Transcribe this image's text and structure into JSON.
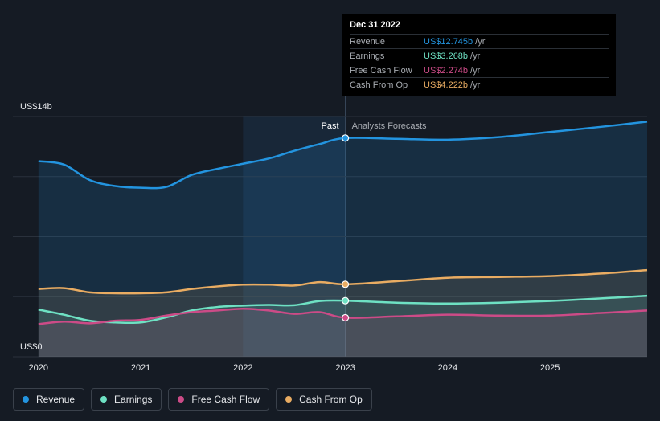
{
  "colors": {
    "revenue": "#2394df",
    "earnings": "#6ee1c3",
    "free_cash_flow": "#cc4b87",
    "cash_from_op": "#e9ac62",
    "grid": "#2a313c",
    "axis_text": "#e6e8eb",
    "past_highlight": "#1b3148"
  },
  "tooltip": {
    "date": "Dec 31 2022",
    "rows": [
      {
        "label": "Revenue",
        "value": "US$12.745b",
        "unit": "/yr",
        "color": "#2394df"
      },
      {
        "label": "Earnings",
        "value": "US$3.268b",
        "unit": "/yr",
        "color": "#6ee1c3"
      },
      {
        "label": "Free Cash Flow",
        "value": "US$2.274b",
        "unit": "/yr",
        "color": "#cc4b87"
      },
      {
        "label": "Cash From Op",
        "value": "US$4.222b",
        "unit": "/yr",
        "color": "#e9ac62"
      }
    ]
  },
  "legend": [
    {
      "label": "Revenue",
      "color": "#2394df"
    },
    {
      "label": "Earnings",
      "color": "#6ee1c3"
    },
    {
      "label": "Free Cash Flow",
      "color": "#cc4b87"
    },
    {
      "label": "Cash From Op",
      "color": "#e9ac62"
    }
  ],
  "chart_data": {
    "type": "area",
    "title": "",
    "y_top_label": "US$14b",
    "y_bottom_label": "US$0",
    "ylim": [
      0,
      14
    ],
    "xlim": [
      2019.75,
      2025.95
    ],
    "past_label": "Past",
    "forecast_label": "Analysts Forecasts",
    "divider_x": 2023.0,
    "highlight_start_x": 2022.0,
    "x_ticks": [
      {
        "value": 2020,
        "label": "2020"
      },
      {
        "value": 2021,
        "label": "2021"
      },
      {
        "value": 2022,
        "label": "2022"
      },
      {
        "value": 2023,
        "label": "2023"
      },
      {
        "value": 2024,
        "label": "2024"
      },
      {
        "value": 2025,
        "label": "2025"
      }
    ],
    "series": [
      {
        "key": "revenue",
        "name": "Revenue",
        "points": [
          [
            2020.0,
            11.4
          ],
          [
            2020.25,
            11.2
          ],
          [
            2020.5,
            10.3
          ],
          [
            2020.75,
            9.95
          ],
          [
            2021.0,
            9.85
          ],
          [
            2021.25,
            9.9
          ],
          [
            2021.5,
            10.6
          ],
          [
            2021.75,
            10.95
          ],
          [
            2022.0,
            11.25
          ],
          [
            2022.25,
            11.55
          ],
          [
            2022.5,
            12.0
          ],
          [
            2022.75,
            12.4
          ],
          [
            2023.0,
            12.745
          ],
          [
            2023.5,
            12.7
          ],
          [
            2024.0,
            12.65
          ],
          [
            2024.5,
            12.8
          ],
          [
            2025.0,
            13.1
          ],
          [
            2025.5,
            13.4
          ],
          [
            2025.95,
            13.7
          ]
        ]
      },
      {
        "key": "cash_from_op",
        "name": "Cash From Op",
        "points": [
          [
            2020.0,
            3.95
          ],
          [
            2020.25,
            4.0
          ],
          [
            2020.5,
            3.75
          ],
          [
            2020.75,
            3.7
          ],
          [
            2021.0,
            3.7
          ],
          [
            2021.25,
            3.75
          ],
          [
            2021.5,
            3.95
          ],
          [
            2021.75,
            4.1
          ],
          [
            2022.0,
            4.2
          ],
          [
            2022.25,
            4.2
          ],
          [
            2022.5,
            4.15
          ],
          [
            2022.75,
            4.35
          ],
          [
            2023.0,
            4.222
          ],
          [
            2023.5,
            4.4
          ],
          [
            2024.0,
            4.6
          ],
          [
            2024.5,
            4.65
          ],
          [
            2025.0,
            4.7
          ],
          [
            2025.5,
            4.85
          ],
          [
            2025.95,
            5.05
          ]
        ]
      },
      {
        "key": "earnings",
        "name": "Earnings",
        "points": [
          [
            2020.0,
            2.75
          ],
          [
            2020.25,
            2.45
          ],
          [
            2020.5,
            2.1
          ],
          [
            2020.75,
            2.0
          ],
          [
            2021.0,
            2.0
          ],
          [
            2021.25,
            2.3
          ],
          [
            2021.5,
            2.7
          ],
          [
            2021.75,
            2.9
          ],
          [
            2022.0,
            2.98
          ],
          [
            2022.25,
            3.02
          ],
          [
            2022.5,
            3.0
          ],
          [
            2022.75,
            3.25
          ],
          [
            2023.0,
            3.268
          ],
          [
            2023.5,
            3.15
          ],
          [
            2024.0,
            3.1
          ],
          [
            2024.5,
            3.15
          ],
          [
            2025.0,
            3.25
          ],
          [
            2025.5,
            3.4
          ],
          [
            2025.95,
            3.55
          ]
        ]
      },
      {
        "key": "free_cash_flow",
        "name": "Free Cash Flow",
        "points": [
          [
            2020.0,
            1.9
          ],
          [
            2020.25,
            2.05
          ],
          [
            2020.5,
            1.95
          ],
          [
            2020.75,
            2.1
          ],
          [
            2021.0,
            2.15
          ],
          [
            2021.25,
            2.4
          ],
          [
            2021.5,
            2.6
          ],
          [
            2021.75,
            2.7
          ],
          [
            2022.0,
            2.8
          ],
          [
            2022.25,
            2.7
          ],
          [
            2022.5,
            2.5
          ],
          [
            2022.75,
            2.6
          ],
          [
            2023.0,
            2.274
          ],
          [
            2023.5,
            2.35
          ],
          [
            2024.0,
            2.45
          ],
          [
            2024.5,
            2.4
          ],
          [
            2025.0,
            2.4
          ],
          [
            2025.5,
            2.55
          ],
          [
            2025.95,
            2.7
          ]
        ]
      }
    ]
  }
}
